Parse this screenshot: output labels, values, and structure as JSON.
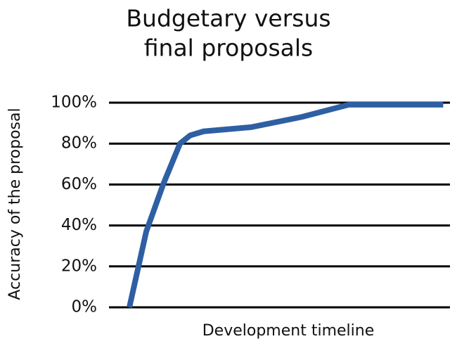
{
  "chart_data": {
    "type": "line",
    "title": [
      "Budgetary versus",
      "final proposals"
    ],
    "x_label": "Development timeline",
    "y_label": "Accuracy of the proposal",
    "x": [
      5,
      10,
      15,
      20,
      23,
      27,
      41,
      56,
      70,
      98
    ],
    "series": [
      {
        "color": "#2e5fa3",
        "values": [
          0,
          37,
          60,
          80,
          84,
          86,
          88,
          93,
          99,
          99
        ]
      }
    ],
    "xlim": [
      0,
      100
    ],
    "ylim": [
      0,
      100
    ],
    "yticks": [
      {
        "value": 0,
        "label": "0%"
      },
      {
        "value": 20,
        "label": "20%"
      },
      {
        "value": 40,
        "label": "40%"
      },
      {
        "value": 60,
        "label": "60%"
      },
      {
        "value": 80,
        "label": "80%"
      },
      {
        "value": 100,
        "label": "100%"
      }
    ],
    "grid": true
  }
}
